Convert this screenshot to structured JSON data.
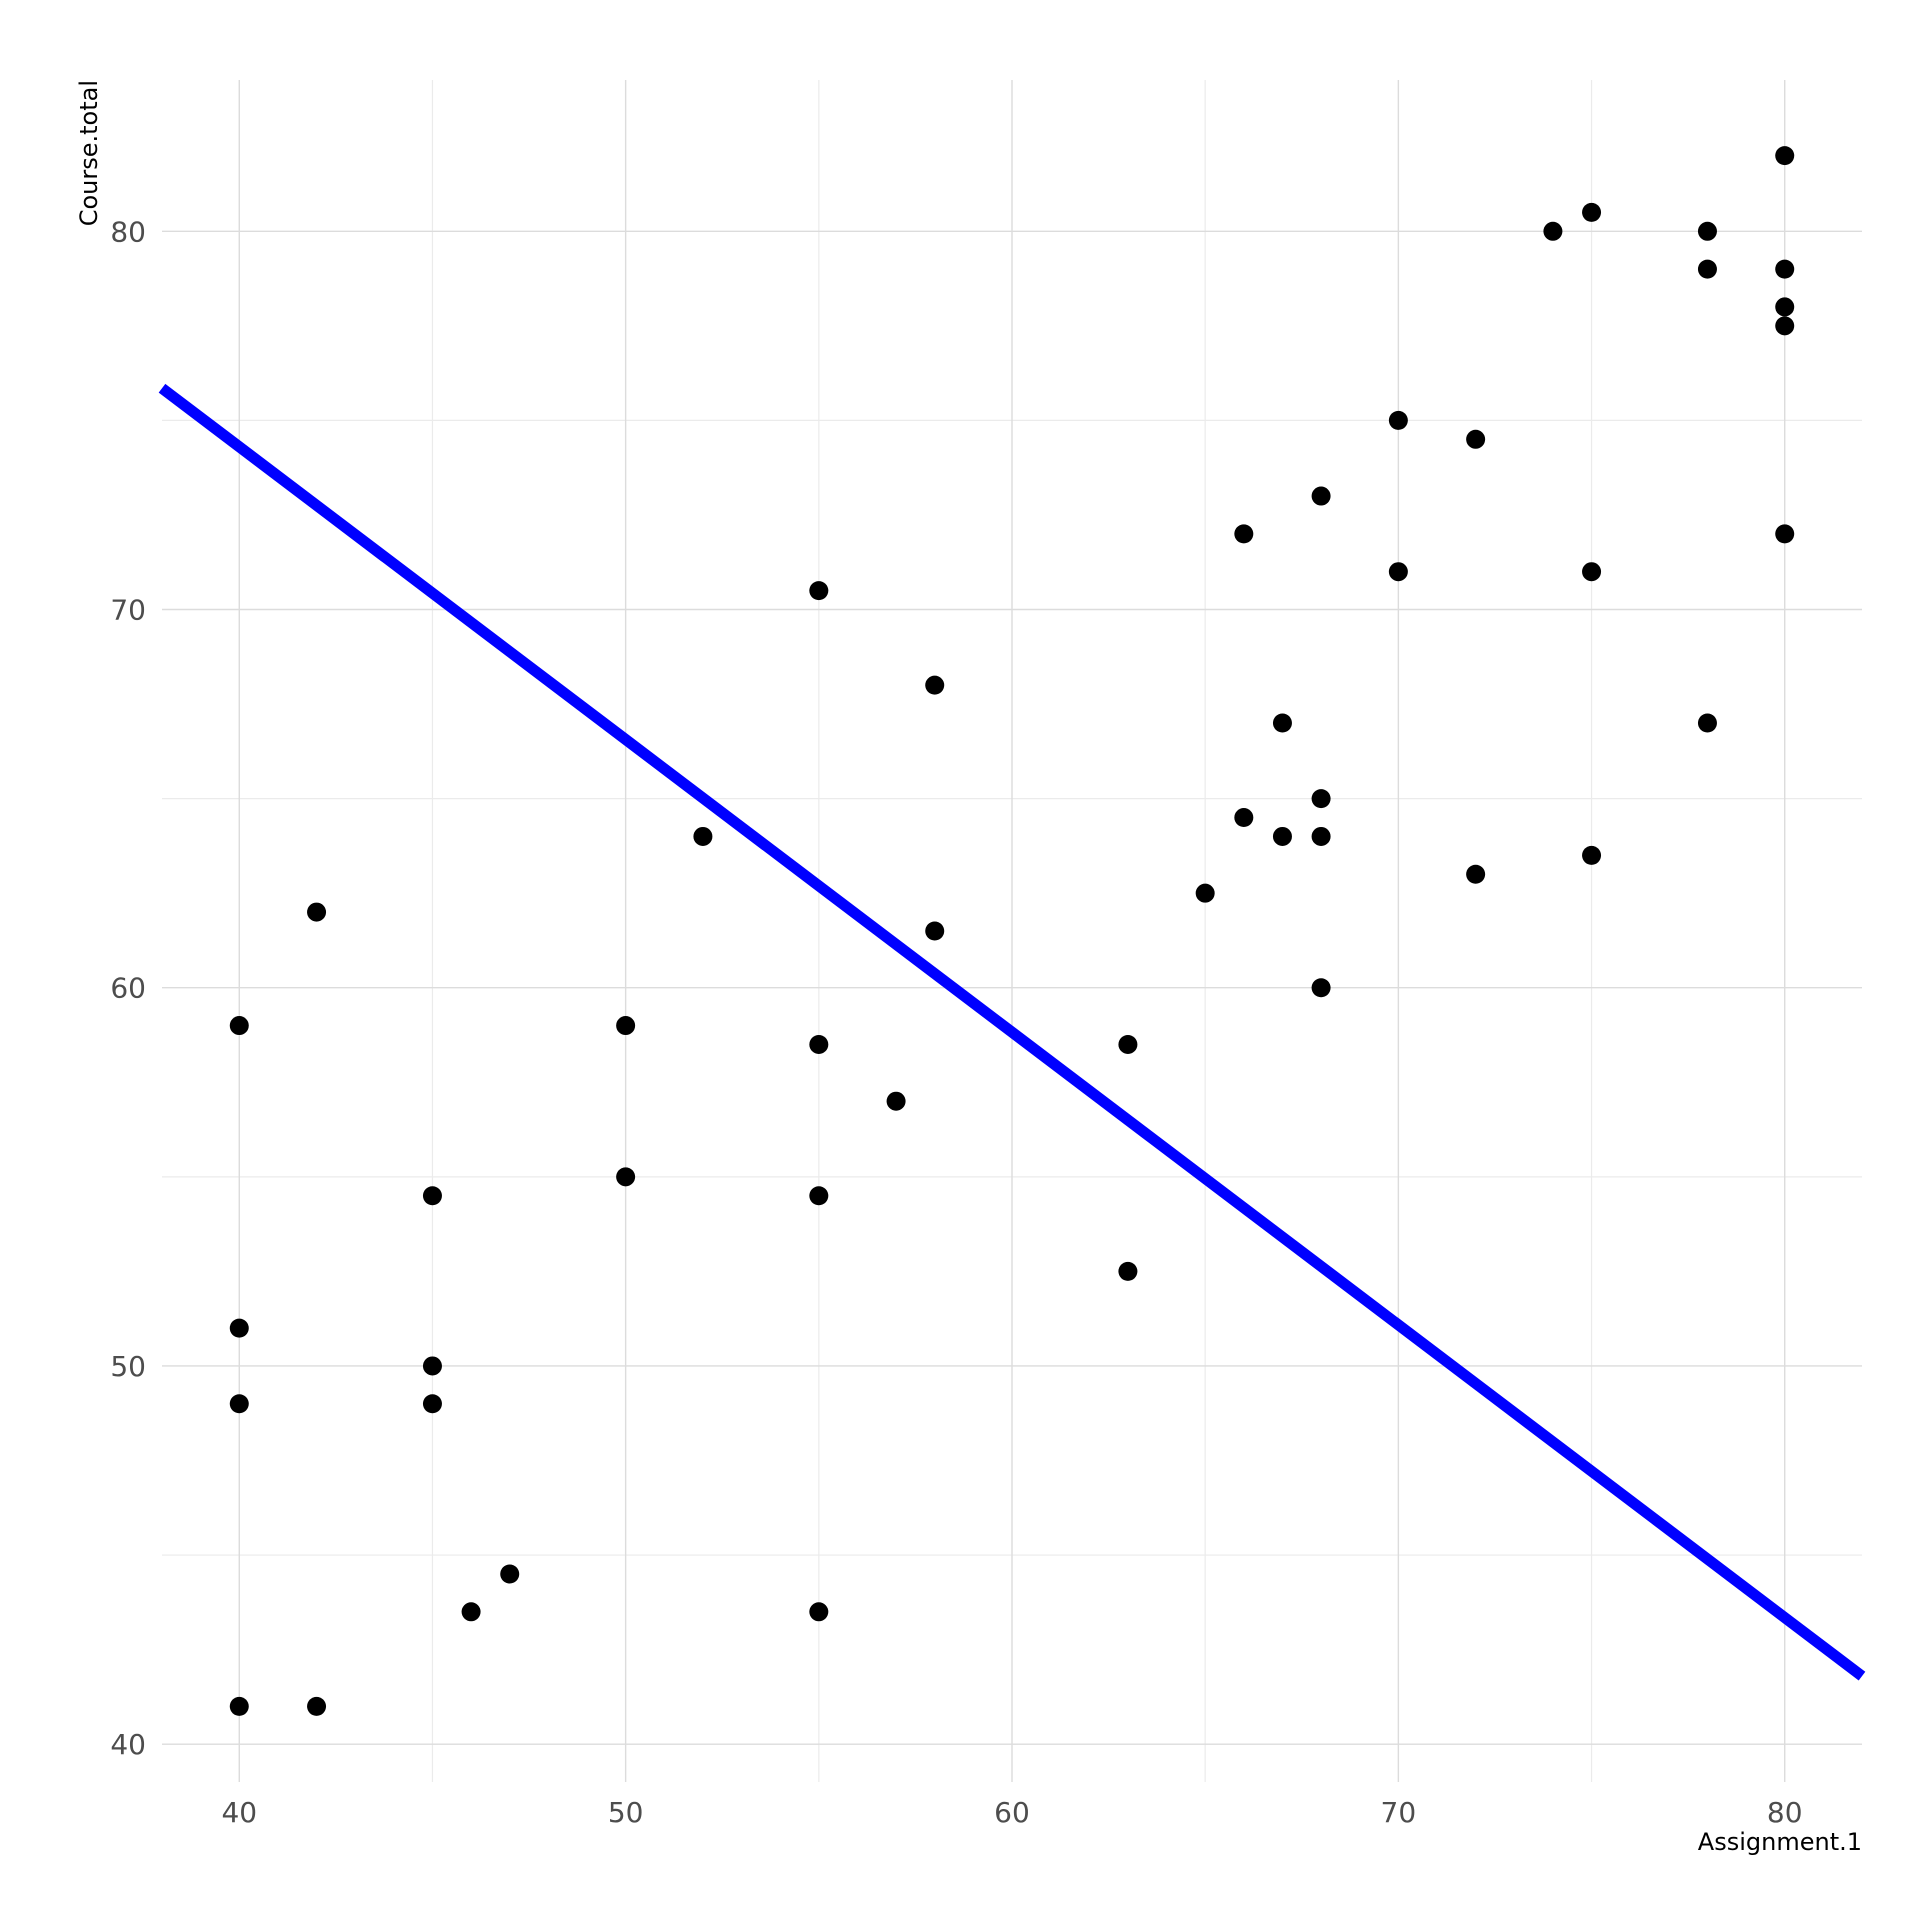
{
  "chart_data": {
    "type": "scatter",
    "title": "",
    "xlabel": "Assignment.1",
    "ylabel": "Course.total",
    "xlim": [
      38,
      82
    ],
    "ylim": [
      39,
      84
    ],
    "x_ticks": [
      40,
      50,
      60,
      70,
      80
    ],
    "y_ticks": [
      40,
      50,
      60,
      70,
      80
    ],
    "x_minor": [
      45,
      55,
      65,
      75
    ],
    "y_minor": [
      45,
      55,
      65,
      75
    ],
    "grid": true,
    "colors": {
      "point": "#000000",
      "line": "#0000ff"
    },
    "points": {
      "x": [
        80,
        75,
        74,
        78,
        78,
        80,
        80,
        80,
        70,
        72,
        68,
        66,
        80,
        70,
        75,
        55,
        58,
        67,
        78,
        68,
        66,
        67,
        68,
        52,
        75,
        72,
        65,
        42,
        58,
        68,
        40,
        50,
        55,
        63,
        57,
        50,
        45,
        55,
        63,
        40,
        45,
        40,
        45,
        47,
        46,
        55,
        40,
        42
      ],
      "y": [
        82,
        80.5,
        80,
        80,
        79,
        79,
        78,
        77.5,
        75,
        74.5,
        73,
        72,
        72,
        71,
        71,
        70.5,
        68,
        67,
        67,
        65,
        64.5,
        64,
        64,
        64,
        63.5,
        63,
        62.5,
        62,
        61.5,
        60,
        59,
        59,
        58.5,
        58.5,
        57,
        55,
        54.5,
        54.5,
        52.5,
        51,
        50,
        49,
        49,
        44.5,
        43.5,
        43.5,
        41,
        41
      ]
    },
    "line": {
      "x": [
        38,
        82
      ],
      "y": [
        75.85,
        41.8
      ]
    }
  }
}
